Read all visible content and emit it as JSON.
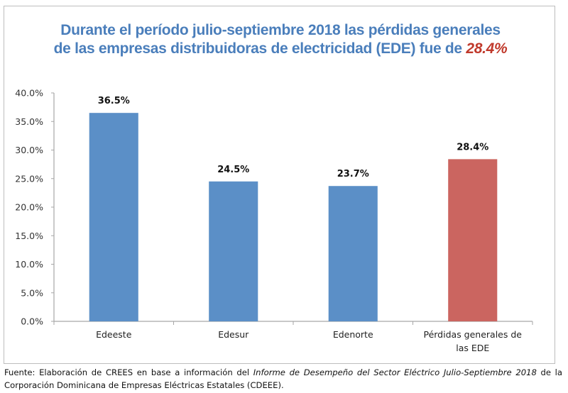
{
  "chart_data": {
    "type": "bar",
    "title_parts": {
      "line1": "Durante el período julio-septiembre 2018 las pérdidas generales",
      "line2_prefix": "de las empresas distribuidoras de electricidad (EDE) fue de ",
      "line2_highlight": "28.4%"
    },
    "title": "Durante el período julio-septiembre 2018 las pérdidas generales de las empresas distribuidoras de electricidad (EDE) fue de 28.4%",
    "categories": [
      [
        "Edeeste"
      ],
      [
        "Edesur"
      ],
      [
        "Edenorte"
      ],
      [
        "Pérdidas generales de",
        "las EDE"
      ]
    ],
    "values": [
      36.5,
      24.5,
      23.7,
      28.4
    ],
    "data_labels": [
      "36.5%",
      "24.5%",
      "23.7%",
      "28.4%"
    ],
    "bar_colors": [
      "#5b8fc7",
      "#5b8fc7",
      "#5b8fc7",
      "#cb6560"
    ],
    "xlabel": "",
    "ylabel": "",
    "ylim": [
      0,
      40
    ],
    "yticks": [
      0,
      5,
      10,
      15,
      20,
      25,
      30,
      35,
      40
    ],
    "ytick_labels": [
      "0.0%",
      "5.0%",
      "10.0%",
      "15.0%",
      "20.0%",
      "25.0%",
      "30.0%",
      "35.0%",
      "40.0%"
    ],
    "grid": false,
    "legend": "none"
  },
  "footer": {
    "prefix": "Fuente: Elaboración de CREES en base a información del ",
    "italic": "Informe de Desempeño del Sector Eléctrico Julio-Septiembre 2018",
    "suffix": " de la Corporación Dominicana de Empresas Eléctricas Estatales (CDEEE)."
  }
}
